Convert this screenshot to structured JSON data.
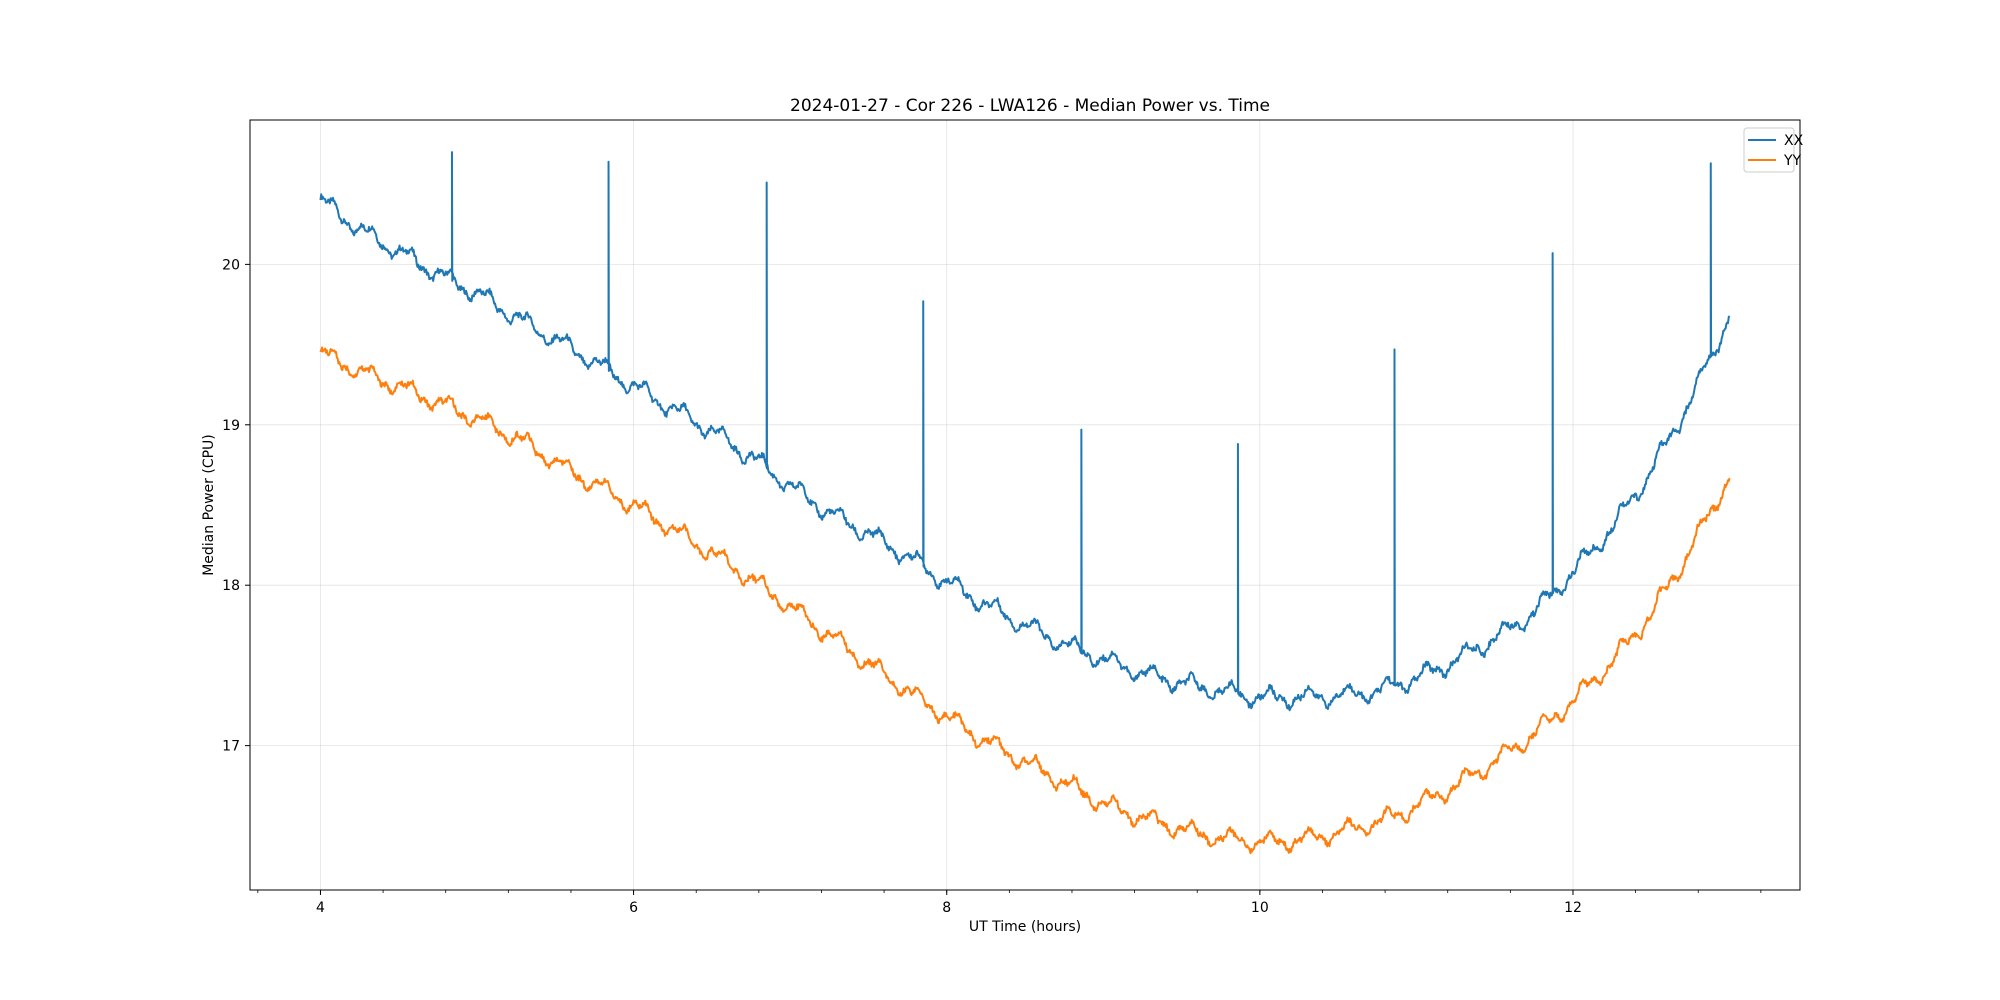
{
  "chart_data": {
    "type": "line",
    "title": "2024-01-27 - Cor 226 - LWA126 - Median Power vs. Time",
    "xlabel": "UT Time (hours)",
    "ylabel": "Median Power (CPU)",
    "xlim": [
      3.55,
      13.45
    ],
    "ylim": [
      16.1,
      20.9
    ],
    "xticks": [
      4,
      6,
      8,
      10,
      12
    ],
    "yticks": [
      17,
      18,
      19,
      20
    ],
    "grid": true,
    "legend_position": "top-right",
    "series": [
      {
        "name": "XX",
        "color": "#1f77b4",
        "x": [
          4.0,
          4.25,
          4.5,
          4.75,
          5.0,
          5.25,
          5.5,
          5.75,
          6.0,
          6.25,
          6.5,
          6.75,
          7.0,
          7.25,
          7.5,
          7.75,
          8.0,
          8.25,
          8.5,
          8.75,
          9.0,
          9.25,
          9.5,
          9.75,
          10.0,
          10.25,
          10.5,
          10.75,
          11.0,
          11.25,
          11.5,
          11.75,
          12.0,
          12.25,
          12.5,
          12.75,
          13.0
        ],
        "y": [
          20.4,
          20.22,
          20.08,
          19.94,
          19.82,
          19.67,
          19.53,
          19.39,
          19.24,
          19.1,
          18.96,
          18.8,
          18.62,
          18.45,
          18.32,
          18.18,
          18.02,
          17.88,
          17.75,
          17.63,
          17.54,
          17.45,
          17.39,
          17.34,
          17.3,
          17.3,
          17.31,
          17.34,
          17.42,
          17.53,
          17.67,
          17.83,
          18.08,
          18.36,
          18.71,
          19.15,
          19.68
        ],
        "spikes": [
          {
            "x": 4.84,
            "y": 20.7
          },
          {
            "x": 5.84,
            "y": 20.64
          },
          {
            "x": 6.85,
            "y": 20.51
          },
          {
            "x": 7.85,
            "y": 19.77
          },
          {
            "x": 8.86,
            "y": 18.97
          },
          {
            "x": 9.86,
            "y": 18.88
          },
          {
            "x": 10.86,
            "y": 19.47
          },
          {
            "x": 11.87,
            "y": 20.07
          },
          {
            "x": 12.88,
            "y": 20.63
          }
        ]
      },
      {
        "name": "YY",
        "color": "#ff7f0e",
        "x": [
          4.0,
          4.25,
          4.5,
          4.75,
          5.0,
          5.25,
          5.5,
          5.75,
          6.0,
          6.25,
          6.5,
          6.75,
          7.0,
          7.25,
          7.5,
          7.75,
          8.0,
          8.25,
          8.5,
          8.75,
          9.0,
          9.25,
          9.5,
          9.75,
          10.0,
          10.25,
          10.5,
          10.75,
          11.0,
          11.25,
          11.5,
          11.75,
          12.0,
          12.25,
          12.5,
          12.75,
          13.0
        ],
        "y": [
          19.45,
          19.33,
          19.24,
          19.14,
          19.04,
          18.92,
          18.77,
          18.63,
          18.5,
          18.35,
          18.2,
          18.04,
          17.87,
          17.69,
          17.51,
          17.34,
          17.18,
          17.03,
          16.9,
          16.77,
          16.64,
          16.55,
          16.48,
          16.42,
          16.4,
          16.41,
          16.46,
          16.52,
          16.62,
          16.75,
          16.9,
          17.07,
          17.28,
          17.52,
          17.82,
          18.22,
          18.68
        ],
        "spikes": []
      }
    ]
  }
}
